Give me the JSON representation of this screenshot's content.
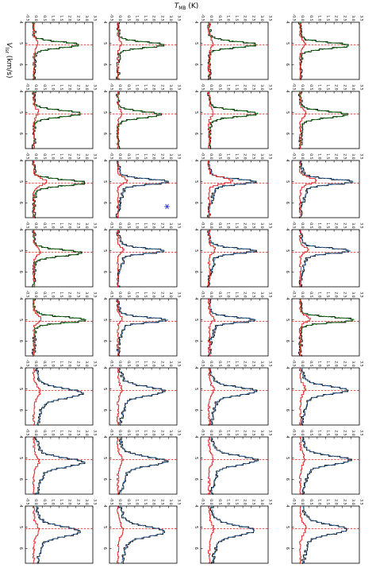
{
  "chart_data": {
    "type": "line",
    "layout": "grid of 8 rows x 4 columns of spectral panels, rotated 90 degrees clockwise",
    "xlabel": "$V_{lsr}$ (km/s)",
    "ylabel": "$T_{MB}$ (K)",
    "x_tick_labels": [
      "4",
      "5",
      "6"
    ],
    "y_tick_labels": [
      "-0.5",
      "0.0",
      "0.5",
      "1.0",
      "1.5",
      "2.0",
      "2.5",
      "3.0",
      "3.5"
    ],
    "xlim": [
      4.0,
      6.7
    ],
    "ylim": [
      -0.5,
      3.5
    ],
    "vline_x": 5.07,
    "vline_color": "#e02020",
    "colors": {
      "observed": "#000000",
      "fit_green": "#138a13",
      "fit_blue": "#2f6fb5",
      "residual": "#e02020",
      "marker": "#0000ee"
    },
    "marker_symbol": "*",
    "marker_panel": {
      "row": 2,
      "col": 2
    },
    "panels": [
      [
        {
          "fit": "green",
          "peak": 2.9,
          "center": 5.1,
          "width": 0.14,
          "wing": 0.1,
          "resid": 0.3
        },
        {
          "fit": "green",
          "peak": 2.8,
          "center": 5.05,
          "width": 0.14,
          "wing": 0.1,
          "resid": 0.3
        },
        {
          "fit": "green",
          "peak": 2.7,
          "center": 5.07,
          "width": 0.14,
          "wing": 0.1,
          "resid": 0.25
        },
        {
          "fit": "green",
          "peak": 2.7,
          "center": 5.07,
          "width": 0.14,
          "wing": 0.1,
          "resid": 0.25
        }
      ],
      [
        {
          "fit": "green",
          "peak": 2.8,
          "center": 5.1,
          "width": 0.15,
          "wing": 0.1,
          "resid": 0.35
        },
        {
          "fit": "green",
          "peak": 2.9,
          "center": 5.05,
          "width": 0.15,
          "wing": 0.1,
          "resid": 0.3
        },
        {
          "fit": "green",
          "peak": 2.5,
          "center": 5.1,
          "width": 0.15,
          "wing": 0.1,
          "resid": 0.25
        },
        {
          "fit": "green",
          "peak": 2.8,
          "center": 5.05,
          "width": 0.15,
          "wing": 0.1,
          "resid": 0.3
        }
      ],
      [
        {
          "fit": "blue",
          "peak": 3.2,
          "center": 5.0,
          "width": 0.12,
          "wing": 0.55,
          "resid": 1.1
        },
        {
          "fit": "blue",
          "peak": 2.8,
          "center": 5.0,
          "width": 0.12,
          "wing": 0.5,
          "resid": 1.5
        },
        {
          "fit": "blue",
          "peak": 3.0,
          "center": 5.0,
          "width": 0.13,
          "wing": 0.45,
          "resid": 0.6
        },
        {
          "fit": "green",
          "peak": 3.0,
          "center": 5.05,
          "width": 0.15,
          "wing": 0.1,
          "resid": 0.8
        }
      ],
      [
        {
          "fit": "blue",
          "peak": 3.0,
          "center": 5.0,
          "width": 0.12,
          "wing": 0.5,
          "resid": 0.5
        },
        {
          "fit": "blue",
          "peak": 2.8,
          "center": 5.0,
          "width": 0.12,
          "wing": 0.5,
          "resid": 0.4
        },
        {
          "fit": "blue",
          "peak": 2.8,
          "center": 5.0,
          "width": 0.12,
          "wing": 0.5,
          "resid": 0.35
        },
        {
          "fit": "green",
          "peak": 2.8,
          "center": 5.1,
          "width": 0.15,
          "wing": 0.1,
          "resid": 0.4
        }
      ],
      [
        {
          "fit": "green",
          "peak": 3.2,
          "center": 5.0,
          "width": 0.13,
          "wing": 0.1,
          "resid": 0.6
        },
        {
          "fit": "blue",
          "peak": 2.8,
          "center": 5.0,
          "width": 0.12,
          "wing": 0.5,
          "resid": 0.35
        },
        {
          "fit": "blue",
          "peak": 3.0,
          "center": 5.0,
          "width": 0.12,
          "wing": 0.5,
          "resid": 0.3
        },
        {
          "fit": "green",
          "peak": 3.1,
          "center": 5.0,
          "width": 0.14,
          "wing": 0.1,
          "resid": 0.5
        }
      ],
      [
        {
          "fit": "blue",
          "peak": 2.8,
          "center": 5.05,
          "width": 0.18,
          "wing": 0.65,
          "resid": 0.3
        },
        {
          "fit": "blue",
          "peak": 2.8,
          "center": 5.1,
          "width": 0.18,
          "wing": 0.65,
          "resid": 0.3
        },
        {
          "fit": "blue",
          "peak": 2.8,
          "center": 5.1,
          "width": 0.2,
          "wing": 0.7,
          "resid": 0.25
        },
        {
          "fit": "blue",
          "peak": 2.9,
          "center": 5.2,
          "width": 0.22,
          "wing": 0.75,
          "resid": 0.4
        }
      ],
      [
        {
          "fit": "blue",
          "peak": 3.0,
          "center": 5.1,
          "width": 0.2,
          "wing": 0.7,
          "resid": 0.3
        },
        {
          "fit": "blue",
          "peak": 2.9,
          "center": 5.1,
          "width": 0.2,
          "wing": 0.7,
          "resid": 0.3
        },
        {
          "fit": "blue",
          "peak": 2.9,
          "center": 5.15,
          "width": 0.2,
          "wing": 0.75,
          "resid": 0.3
        },
        {
          "fit": "blue",
          "peak": 3.0,
          "center": 5.2,
          "width": 0.2,
          "wing": 0.8,
          "resid": 0.35
        }
      ],
      [
        {
          "fit": "blue",
          "peak": 2.8,
          "center": 5.1,
          "width": 0.22,
          "wing": 0.75,
          "resid": 0.35
        },
        {
          "fit": "blue",
          "peak": 2.7,
          "center": 5.15,
          "width": 0.22,
          "wing": 0.75,
          "resid": 0.3
        },
        {
          "fit": "blue",
          "peak": 2.8,
          "center": 5.2,
          "width": 0.22,
          "wing": 0.8,
          "resid": 0.35
        },
        {
          "fit": "blue",
          "peak": 2.8,
          "center": 5.2,
          "width": 0.22,
          "wing": 0.8,
          "resid": 0.35
        }
      ]
    ]
  }
}
